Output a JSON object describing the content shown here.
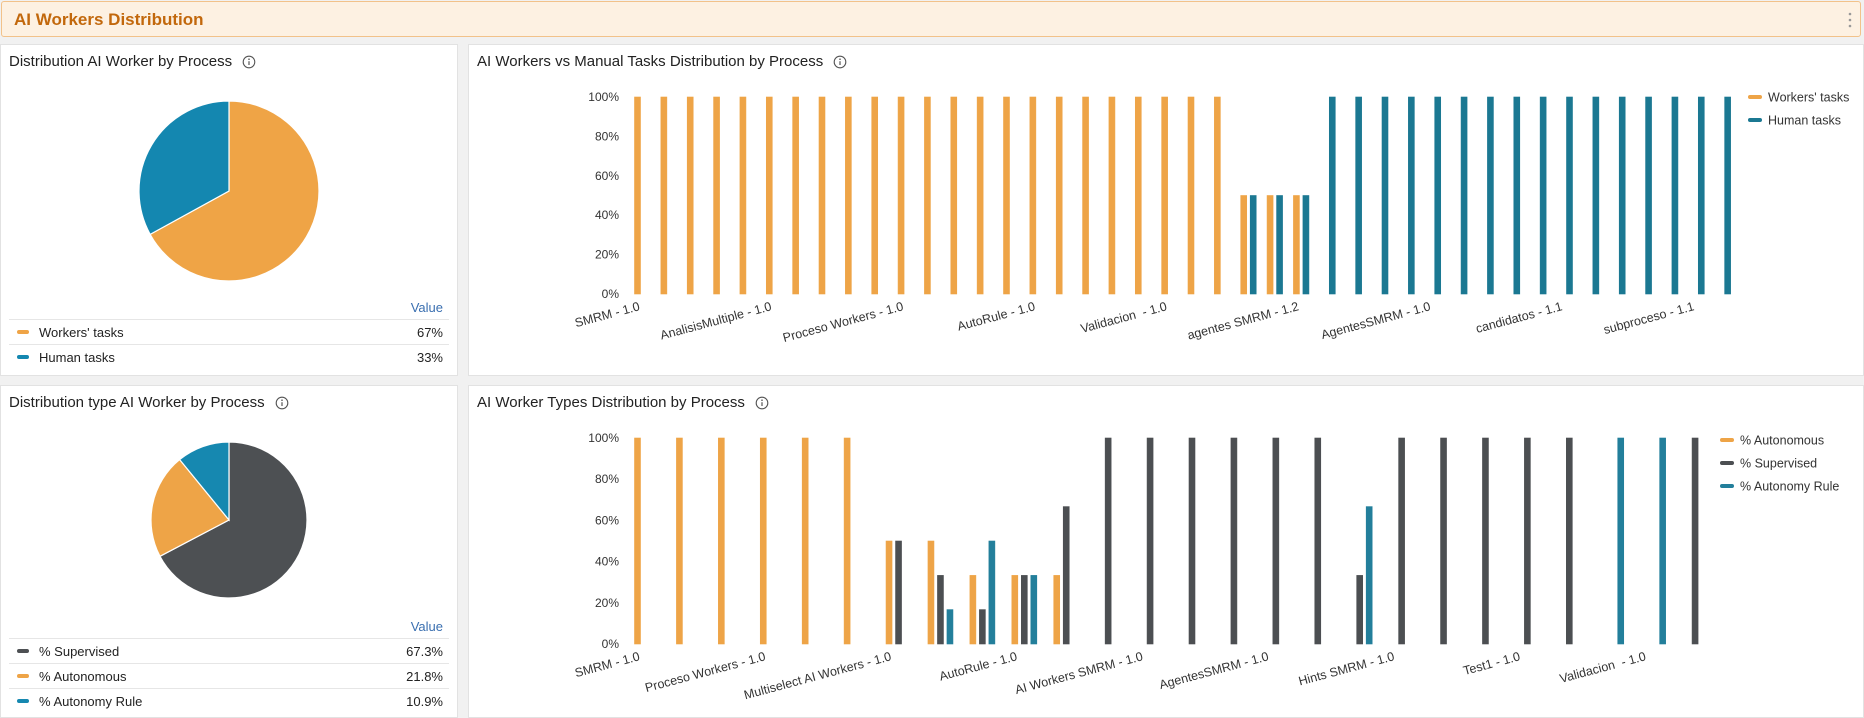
{
  "header": {
    "title": "AI Workers Distribution"
  },
  "chart_data": [
    {
      "type": "pie",
      "title": "Distribution AI Worker by Process",
      "value_header": "Value",
      "categories": [
        "Workers' tasks",
        "Human tasks"
      ],
      "values": [
        67,
        33
      ],
      "value_labels": [
        "67%",
        "33%"
      ],
      "colors": [
        "#efa446",
        "#1487b0"
      ]
    },
    {
      "type": "bar",
      "title": "AI Workers vs Manual Tasks Distribution by Process",
      "categories": [
        "SMRM - 1.0",
        null,
        null,
        null,
        null,
        "AnalisisMultiple - 1.0",
        null,
        null,
        null,
        null,
        "Proceso Workers - 1.0",
        null,
        null,
        null,
        null,
        "AutoRule - 1.0",
        null,
        null,
        null,
        null,
        "Validacion  - 1.0",
        null,
        null,
        null,
        null,
        "agentes SMRM - 1.2",
        null,
        null,
        null,
        null,
        "AgentesSMRM - 1.0",
        null,
        null,
        null,
        null,
        "candidatos - 1.1",
        null,
        null,
        null,
        null,
        "subproceso - 1.1",
        null
      ],
      "series": [
        {
          "name": "Workers' tasks",
          "color": "#eea447",
          "values": [
            100,
            100,
            100,
            100,
            100,
            100,
            100,
            100,
            100,
            100,
            100,
            100,
            100,
            100,
            100,
            100,
            100,
            100,
            100,
            100,
            100,
            100,
            100,
            50,
            50,
            50,
            0,
            0,
            0,
            0,
            0,
            0,
            0,
            0,
            0,
            0,
            0,
            0,
            0,
            0,
            0,
            0
          ]
        },
        {
          "name": "Human tasks",
          "color": "#1b7892",
          "values": [
            0,
            0,
            0,
            0,
            0,
            0,
            0,
            0,
            0,
            0,
            0,
            0,
            0,
            0,
            0,
            0,
            0,
            0,
            0,
            0,
            0,
            0,
            0,
            50,
            50,
            50,
            100,
            100,
            100,
            100,
            100,
            100,
            100,
            100,
            100,
            100,
            100,
            100,
            100,
            100,
            100,
            100
          ]
        }
      ],
      "ylim": [
        0,
        100
      ],
      "yticks": [
        {
          "value": 0,
          "label": "0%"
        },
        {
          "value": 20,
          "label": "20%"
        },
        {
          "value": 40,
          "label": "40%"
        },
        {
          "value": 60,
          "label": "60%"
        },
        {
          "value": 80,
          "label": "80%"
        },
        {
          "value": 100,
          "label": "100%"
        }
      ],
      "legend": "top-right"
    },
    {
      "type": "pie",
      "title": "Distribution type AI Worker by Process",
      "value_header": "Value",
      "categories": [
        "% Supervised",
        "% Autonomous",
        "% Autonomy Rule"
      ],
      "values": [
        67.3,
        21.8,
        10.9
      ],
      "value_labels": [
        "67.3%",
        "21.8%",
        "10.9%"
      ],
      "colors": [
        "#4d5053",
        "#eea447",
        "#1688b0"
      ]
    },
    {
      "type": "bar",
      "title": "AI Worker Types Distribution by Process",
      "categories": [
        "SMRM - 1.0",
        null,
        null,
        "Proceso Workers - 1.0",
        null,
        null,
        "Multiselect AI Workers - 1.0",
        null,
        null,
        "AutoRule - 1.0",
        null,
        null,
        "AI Workers SMRM - 1.0",
        null,
        null,
        "AgentesSMRM - 1.0",
        null,
        null,
        "Hints SMRM - 1.0",
        null,
        null,
        "Test1 - 1.0",
        null,
        null,
        "Validacion  - 1.0",
        null
      ],
      "series": [
        {
          "name": "% Autonomous",
          "color": "#eea447",
          "values": [
            100,
            100,
            100,
            100,
            100,
            100,
            50,
            50,
            33.3,
            33.3,
            33.3,
            0,
            0,
            0,
            0,
            0,
            0,
            0,
            0,
            0,
            0,
            0,
            0,
            0,
            0,
            0
          ]
        },
        {
          "name": "% Supervised",
          "color": "#4c4f52",
          "values": [
            0,
            0,
            0,
            0,
            0,
            0,
            50,
            33.3,
            16.7,
            33.3,
            66.7,
            100,
            100,
            100,
            100,
            100,
            100,
            33.3,
            100,
            100,
            100,
            100,
            100,
            0,
            0,
            100
          ]
        },
        {
          "name": "% Autonomy Rule",
          "color": "#237f9b",
          "values": [
            0,
            0,
            0,
            0,
            0,
            0,
            0,
            16.7,
            50,
            33.3,
            0,
            0,
            0,
            0,
            0,
            0,
            0,
            66.7,
            0,
            0,
            0,
            0,
            0,
            100,
            100,
            0
          ]
        }
      ],
      "ylim": [
        0,
        100
      ],
      "yticks": [
        {
          "value": 0,
          "label": "0%"
        },
        {
          "value": 20,
          "label": "20%"
        },
        {
          "value": 40,
          "label": "40%"
        },
        {
          "value": 60,
          "label": "60%"
        },
        {
          "value": 80,
          "label": "80%"
        },
        {
          "value": 100,
          "label": "100%"
        }
      ],
      "legend": "top-right"
    }
  ]
}
